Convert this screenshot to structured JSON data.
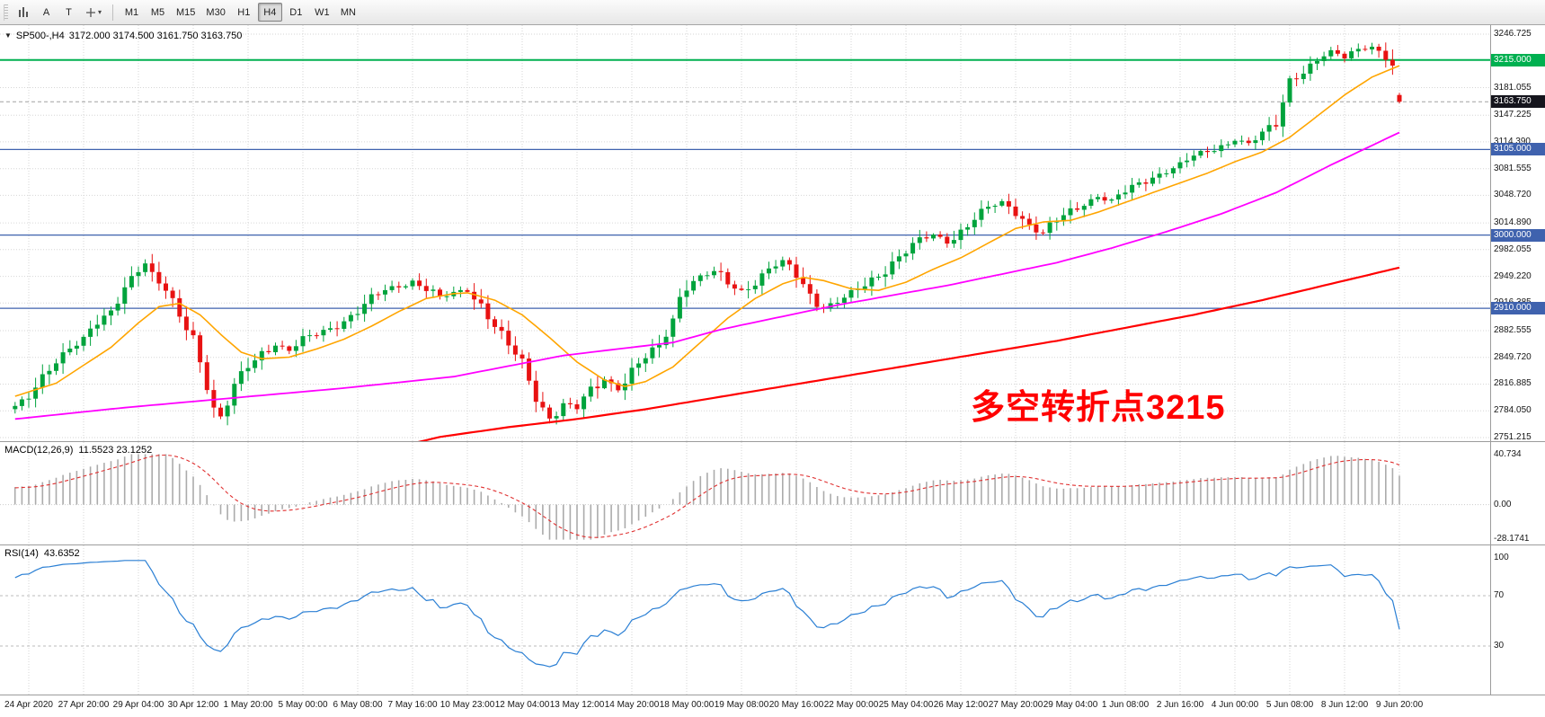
{
  "toolbar": {
    "tools": [
      {
        "label": "A"
      },
      {
        "label": "T"
      }
    ],
    "timeframes": [
      {
        "label": "M1",
        "active": false
      },
      {
        "label": "M5",
        "active": false
      },
      {
        "label": "M15",
        "active": false
      },
      {
        "label": "M30",
        "active": false
      },
      {
        "label": "H1",
        "active": false
      },
      {
        "label": "H4",
        "active": true
      },
      {
        "label": "D1",
        "active": false
      },
      {
        "label": "W1",
        "active": false
      },
      {
        "label": "MN",
        "active": false
      }
    ]
  },
  "chart": {
    "title": "SP500-,H4",
    "ohlc_text": "3172.000 3174.500 3161.750 3163.750",
    "annotation": {
      "text": "多空转折点3215",
      "color": "#ff0000"
    }
  },
  "macd_panel": {
    "label": "MACD(12,26,9)",
    "values": "11.5523 23.1252",
    "axis_labels": [
      "40.734",
      "0.00",
      "-28.1741"
    ],
    "y_range": [
      -28.1741,
      40.734
    ]
  },
  "rsi_panel": {
    "label": "RSI(14)",
    "value": "43.6352",
    "axis_labels": [
      "100",
      "70",
      "30"
    ],
    "levels": [
      70,
      30
    ]
  },
  "colors": {
    "bull": "#00A33C",
    "bear": "#E81212",
    "ma_fast": "#FFA500",
    "ma_mid": "#FF00FF",
    "ma_slow": "#FF0000",
    "macd_hist": "#ABABAB",
    "macd_signal": "#E03030",
    "rsi_line": "#2A7FD4",
    "level_blue": "#3F62AE",
    "level_green": "#00B050",
    "current_price_bg": "#15151D",
    "grid": "#D6D6D6"
  },
  "chart_data": {
    "type": "candlestick",
    "symbol": "SP500-",
    "timeframe": "H4",
    "current_ohlc": {
      "open": 3172.0,
      "high": 3174.5,
      "low": 3161.75,
      "close": 3163.75
    },
    "y_axis_labels": [
      "3246.725",
      "3181.055",
      "3147.225",
      "3114.390",
      "3081.555",
      "3048.720",
      "3014.890",
      "2982.055",
      "2949.220",
      "2916.385",
      "2882.555",
      "2849.720",
      "2816.885",
      "2784.050",
      "2751.215"
    ],
    "y_range": [
      2751.215,
      3246.725
    ],
    "x_labels": [
      "24 Apr 2020",
      "27 Apr 20:00",
      "29 Apr 04:00",
      "30 Apr 12:00",
      "1 May 20:00",
      "5 May 00:00",
      "6 May 08:00",
      "7 May 16:00",
      "10 May 23:00",
      "12 May 04:00",
      "13 May 12:00",
      "14 May 20:00",
      "18 May 00:00",
      "19 May 08:00",
      "20 May 16:00",
      "22 May 00:00",
      "25 May 04:00",
      "26 May 12:00",
      "27 May 20:00",
      "29 May 04:00",
      "1 Jun 08:00",
      "2 Jun 16:00",
      "4 Jun 00:00",
      "5 Jun 08:00",
      "8 Jun 12:00",
      "9 Jun 20:00"
    ],
    "bars_total": 203,
    "first_gridline_bar": 2,
    "bars_per_gridline": 8,
    "hlines": [
      {
        "value": 3215.0,
        "label": "3215.000",
        "color_key": "level_green",
        "width": 2
      },
      {
        "value": 3105.0,
        "label": "3105.000",
        "color_key": "level_blue",
        "width": 1.3
      },
      {
        "value": 3000.0,
        "label": "3000.000",
        "color_key": "level_blue",
        "width": 1.3
      },
      {
        "value": 2910.0,
        "label": "2910.000",
        "color_key": "level_blue",
        "width": 1.3
      }
    ],
    "current_price": {
      "value": 3163.75,
      "label": "3163.750"
    },
    "close_anchors": [
      [
        0,
        2790
      ],
      [
        2,
        2798
      ],
      [
        4,
        2822
      ],
      [
        6,
        2848
      ],
      [
        8,
        2864
      ],
      [
        10,
        2872
      ],
      [
        12,
        2890
      ],
      [
        14,
        2902
      ],
      [
        16,
        2938
      ],
      [
        18,
        2962
      ],
      [
        19,
        2968
      ],
      [
        20,
        2950
      ],
      [
        22,
        2930
      ],
      [
        24,
        2898
      ],
      [
        26,
        2876
      ],
      [
        28,
        2818
      ],
      [
        29,
        2788
      ],
      [
        30,
        2776
      ],
      [
        31,
        2792
      ],
      [
        32,
        2812
      ],
      [
        34,
        2838
      ],
      [
        36,
        2856
      ],
      [
        38,
        2866
      ],
      [
        40,
        2858
      ],
      [
        42,
        2870
      ],
      [
        44,
        2878
      ],
      [
        46,
        2886
      ],
      [
        48,
        2896
      ],
      [
        50,
        2906
      ],
      [
        52,
        2920
      ],
      [
        54,
        2932
      ],
      [
        56,
        2938
      ],
      [
        58,
        2944
      ],
      [
        60,
        2934
      ],
      [
        62,
        2922
      ],
      [
        64,
        2928
      ],
      [
        66,
        2934
      ],
      [
        68,
        2916
      ],
      [
        70,
        2888
      ],
      [
        72,
        2862
      ],
      [
        74,
        2842
      ],
      [
        76,
        2802
      ],
      [
        78,
        2776
      ],
      [
        80,
        2792
      ],
      [
        82,
        2786
      ],
      [
        84,
        2808
      ],
      [
        86,
        2824
      ],
      [
        88,
        2812
      ],
      [
        90,
        2832
      ],
      [
        92,
        2848
      ],
      [
        94,
        2862
      ],
      [
        96,
        2898
      ],
      [
        97,
        2926
      ],
      [
        98,
        2940
      ],
      [
        100,
        2948
      ],
      [
        102,
        2954
      ],
      [
        104,
        2940
      ],
      [
        106,
        2932
      ],
      [
        108,
        2944
      ],
      [
        110,
        2958
      ],
      [
        112,
        2966
      ],
      [
        114,
        2950
      ],
      [
        116,
        2928
      ],
      [
        118,
        2912
      ],
      [
        120,
        2918
      ],
      [
        122,
        2926
      ],
      [
        124,
        2938
      ],
      [
        126,
        2952
      ],
      [
        128,
        2968
      ],
      [
        130,
        2980
      ],
      [
        132,
        2992
      ],
      [
        134,
        3000
      ],
      [
        136,
        2992
      ],
      [
        138,
        3006
      ],
      [
        140,
        3020
      ],
      [
        142,
        3032
      ],
      [
        144,
        3040
      ],
      [
        146,
        3030
      ],
      [
        148,
        3014
      ],
      [
        150,
        3002
      ],
      [
        152,
        3016
      ],
      [
        154,
        3028
      ],
      [
        156,
        3040
      ],
      [
        158,
        3048
      ],
      [
        160,
        3042
      ],
      [
        162,
        3052
      ],
      [
        164,
        3062
      ],
      [
        166,
        3072
      ],
      [
        168,
        3080
      ],
      [
        170,
        3086
      ],
      [
        172,
        3096
      ],
      [
        174,
        3102
      ],
      [
        176,
        3110
      ],
      [
        178,
        3118
      ],
      [
        180,
        3112
      ],
      [
        182,
        3122
      ],
      [
        184,
        3136
      ],
      [
        186,
        3192
      ],
      [
        188,
        3202
      ],
      [
        190,
        3214
      ],
      [
        192,
        3224
      ],
      [
        194,
        3218
      ],
      [
        196,
        3230
      ],
      [
        198,
        3232
      ],
      [
        200,
        3218
      ],
      [
        201,
        3204
      ],
      [
        202,
        3163.75
      ]
    ],
    "ma_lines": {
      "fast": {
        "color_key": "ma_fast",
        "width": 1.6,
        "points": [
          [
            0,
            2802
          ],
          [
            6,
            2818
          ],
          [
            10,
            2840
          ],
          [
            14,
            2862
          ],
          [
            18,
            2892
          ],
          [
            21,
            2912
          ],
          [
            24,
            2916
          ],
          [
            27,
            2902
          ],
          [
            30,
            2878
          ],
          [
            33,
            2856
          ],
          [
            36,
            2848
          ],
          [
            40,
            2850
          ],
          [
            44,
            2860
          ],
          [
            48,
            2872
          ],
          [
            52,
            2888
          ],
          [
            56,
            2906
          ],
          [
            60,
            2922
          ],
          [
            64,
            2928
          ],
          [
            66,
            2929
          ],
          [
            70,
            2920
          ],
          [
            74,
            2902
          ],
          [
            78,
            2874
          ],
          [
            82,
            2844
          ],
          [
            86,
            2822
          ],
          [
            89,
            2814
          ],
          [
            92,
            2820
          ],
          [
            96,
            2838
          ],
          [
            100,
            2868
          ],
          [
            104,
            2898
          ],
          [
            108,
            2922
          ],
          [
            112,
            2940
          ],
          [
            115,
            2948
          ],
          [
            118,
            2944
          ],
          [
            122,
            2934
          ],
          [
            126,
            2932
          ],
          [
            130,
            2942
          ],
          [
            134,
            2958
          ],
          [
            138,
            2972
          ],
          [
            142,
            2990
          ],
          [
            146,
            3008
          ],
          [
            150,
            3016
          ],
          [
            154,
            3018
          ],
          [
            158,
            3028
          ],
          [
            162,
            3040
          ],
          [
            166,
            3052
          ],
          [
            170,
            3064
          ],
          [
            174,
            3076
          ],
          [
            178,
            3090
          ],
          [
            182,
            3102
          ],
          [
            186,
            3120
          ],
          [
            190,
            3146
          ],
          [
            194,
            3172
          ],
          [
            198,
            3194
          ],
          [
            202,
            3208
          ]
        ]
      },
      "mid": {
        "color_key": "ma_mid",
        "width": 1.8,
        "points": [
          [
            0,
            2774
          ],
          [
            16,
            2788
          ],
          [
            32,
            2800
          ],
          [
            48,
            2812
          ],
          [
            64,
            2826
          ],
          [
            80,
            2852
          ],
          [
            96,
            2868
          ],
          [
            103,
            2884
          ],
          [
            112,
            2900
          ],
          [
            120,
            2914
          ],
          [
            128,
            2926
          ],
          [
            136,
            2938
          ],
          [
            144,
            2952
          ],
          [
            152,
            2966
          ],
          [
            160,
            2984
          ],
          [
            168,
            3004
          ],
          [
            176,
            3026
          ],
          [
            184,
            3052
          ],
          [
            192,
            3086
          ],
          [
            198,
            3110
          ],
          [
            202,
            3126
          ]
        ]
      },
      "slow": {
        "color_key": "ma_slow",
        "width": 2.2,
        "points": [
          [
            54,
            2736
          ],
          [
            62,
            2752
          ],
          [
            72,
            2764
          ],
          [
            82,
            2774
          ],
          [
            92,
            2786
          ],
          [
            102,
            2800
          ],
          [
            112,
            2814
          ],
          [
            122,
            2828
          ],
          [
            132,
            2842
          ],
          [
            142,
            2856
          ],
          [
            152,
            2870
          ],
          [
            162,
            2886
          ],
          [
            172,
            2902
          ],
          [
            182,
            2920
          ],
          [
            192,
            2940
          ],
          [
            202,
            2960
          ]
        ]
      }
    }
  }
}
